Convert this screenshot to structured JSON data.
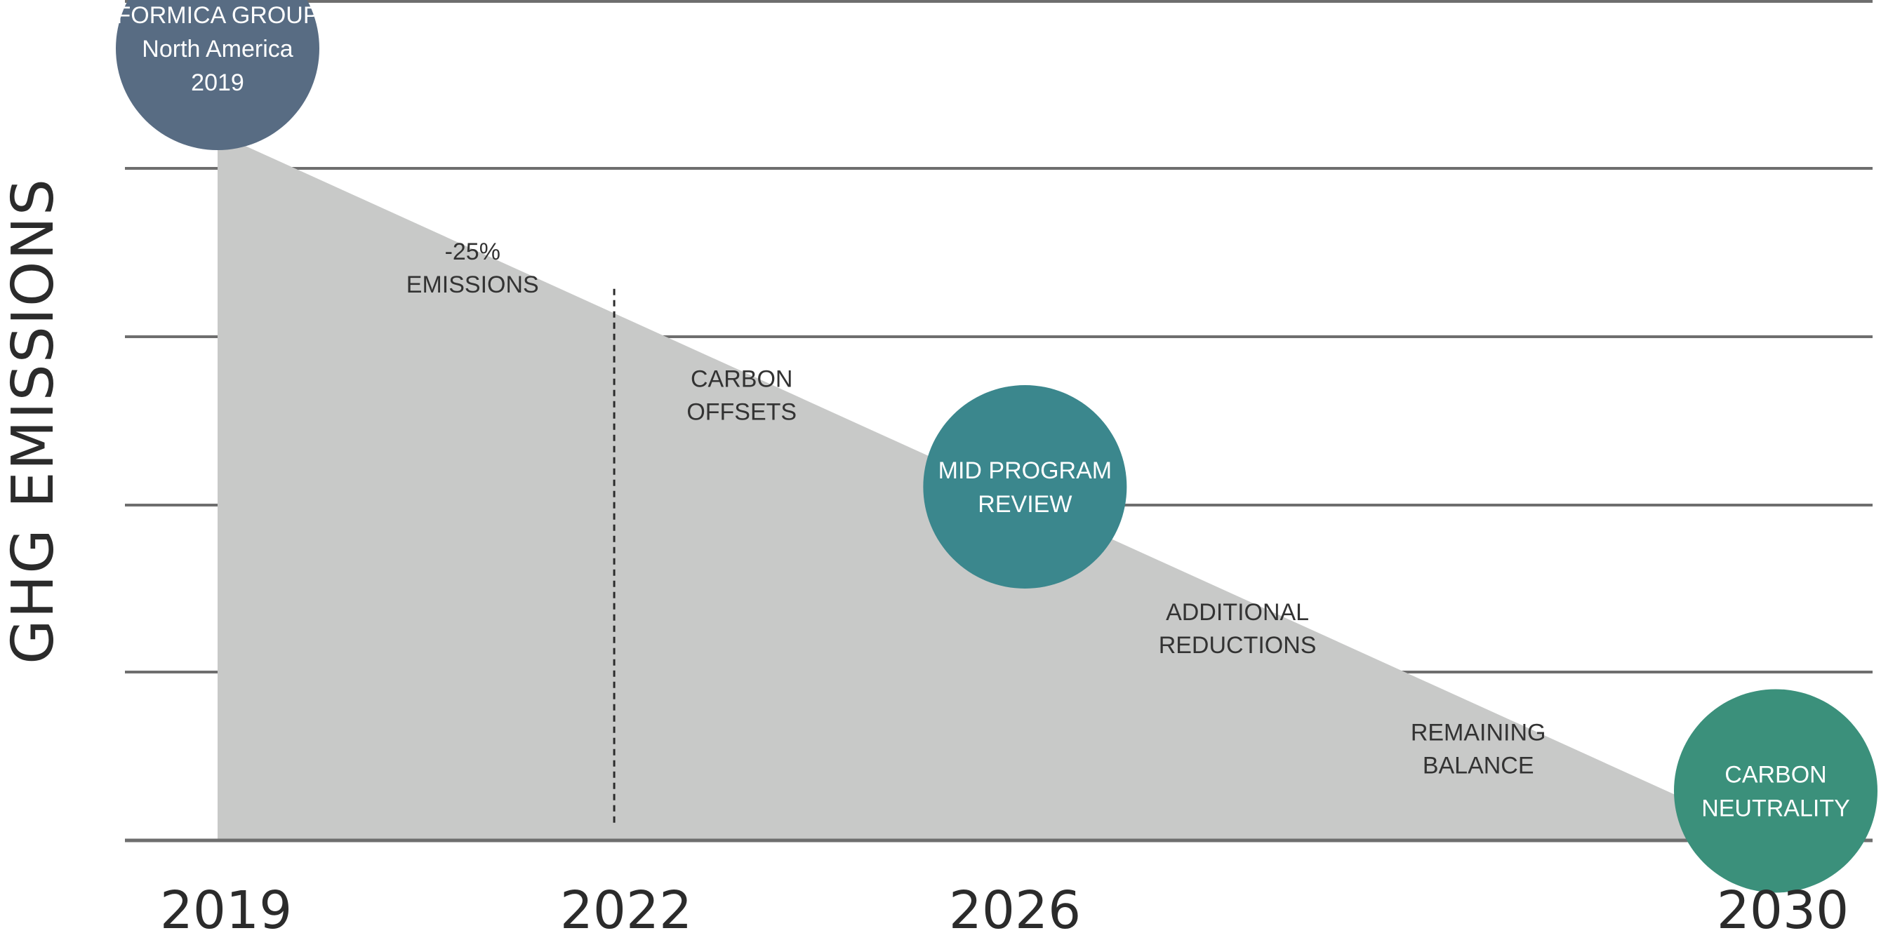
{
  "chart_data": {
    "type": "area",
    "ylabel": "GHG EMISSIONS",
    "x_ticks": [
      "2019",
      "2022",
      "2026",
      "2030"
    ],
    "series": [
      {
        "x": [
          2019,
          2030
        ],
        "y": [
          100,
          0
        ]
      }
    ],
    "grid": true,
    "ylim": [
      0,
      100
    ],
    "milestones": [
      {
        "label": [
          "FORMICA GROUP",
          "North America",
          "2019"
        ],
        "x": 2019,
        "y": 112,
        "color": "#586c83"
      },
      {
        "label": [
          "MID PROGRAM",
          "REVIEW"
        ],
        "x": 2024.7,
        "y": 50,
        "color": "#3b878d"
      },
      {
        "label": [
          "CARBON",
          "NEUTRALITY"
        ],
        "x": 2030,
        "y": 7,
        "color": "#3b907b"
      }
    ],
    "annotations": [
      {
        "text": [
          "-25%",
          "EMISSIONS"
        ],
        "x": 2020.8,
        "y": 81
      },
      {
        "text": [
          "CARBON",
          "OFFSETS"
        ],
        "x": 2022.7,
        "y": 63
      },
      {
        "text": [
          "ADDITIONAL",
          "REDUCTIONS"
        ],
        "x": 2026.2,
        "y": 30
      },
      {
        "text": [
          "REMAINING",
          "BALANCE"
        ],
        "x": 2027.9,
        "y": 13
      }
    ],
    "reference_line": {
      "x": 2021.8,
      "y_range": [
        2,
        78
      ]
    }
  }
}
